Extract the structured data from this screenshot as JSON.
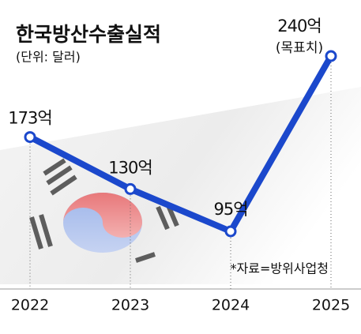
{
  "chart_data": {
    "type": "line",
    "title": "한국방산수출실적",
    "subtitle": "(단위: 달러)",
    "categories": [
      "2022",
      "2023",
      "2024",
      "2025"
    ],
    "values": [
      173,
      130,
      95,
      240
    ],
    "value_labels": [
      "173억",
      "130억",
      "95억",
      "240억"
    ],
    "annotation": "(목표치)",
    "source": "*자료=방위사업청",
    "color": "#1b48cc"
  }
}
